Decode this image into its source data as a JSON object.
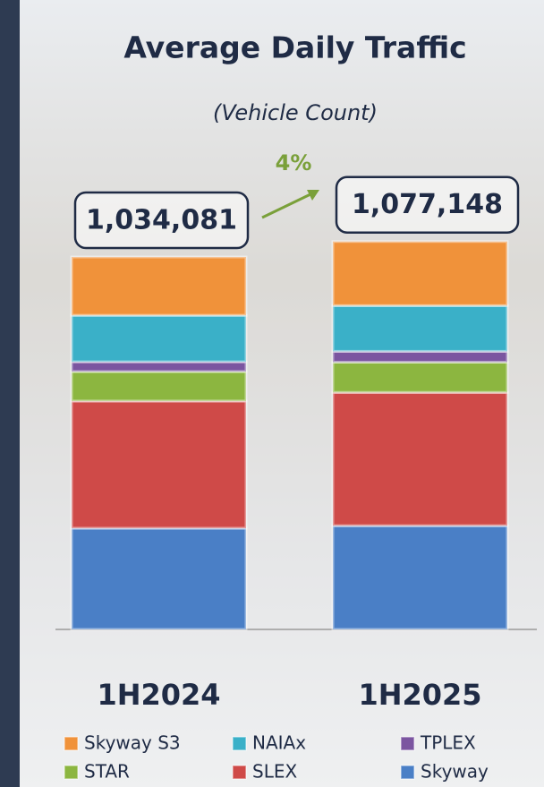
{
  "chart_data": {
    "type": "stacked-bar",
    "title": "Average Daily Traffic",
    "subtitle": "(Vehicle Count)",
    "categories": [
      "1H2024",
      "1H2025"
    ],
    "series": [
      {
        "name": "Skyway",
        "color": "#4a7fc6",
        "values": [
          281000,
          288000
        ]
      },
      {
        "name": "SLEX",
        "color": "#cf4a48",
        "values": [
          353000,
          370000
        ]
      },
      {
        "name": "STAR",
        "color": "#8cb640",
        "values": [
          82000,
          84000
        ]
      },
      {
        "name": "TPLEX",
        "color": "#7b55a0",
        "values": [
          27000,
          30000
        ]
      },
      {
        "name": "NAIAx",
        "color": "#3ab0c8",
        "values": [
          129000,
          127000
        ]
      },
      {
        "name": "Skyway S3",
        "color": "#f0923a",
        "values": [
          162000,
          178000
        ]
      }
    ],
    "totals": {
      "values": [
        1034081,
        1077148
      ],
      "value_labels": [
        "1,034,081",
        "1,077,148"
      ]
    },
    "growth_label": "4%"
  }
}
